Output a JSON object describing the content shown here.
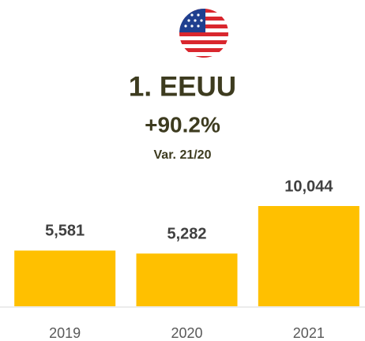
{
  "chart_data": {
    "type": "bar",
    "title": "1. EEUU",
    "subtitle": "+90.2%",
    "annotation": "Var. 21/20",
    "categories": [
      "2019",
      "2020",
      "2021"
    ],
    "values": [
      5581,
      5282,
      10044
    ],
    "value_labels": [
      "5,581",
      "5,282",
      "10,044"
    ],
    "color": "#FFC000"
  }
}
